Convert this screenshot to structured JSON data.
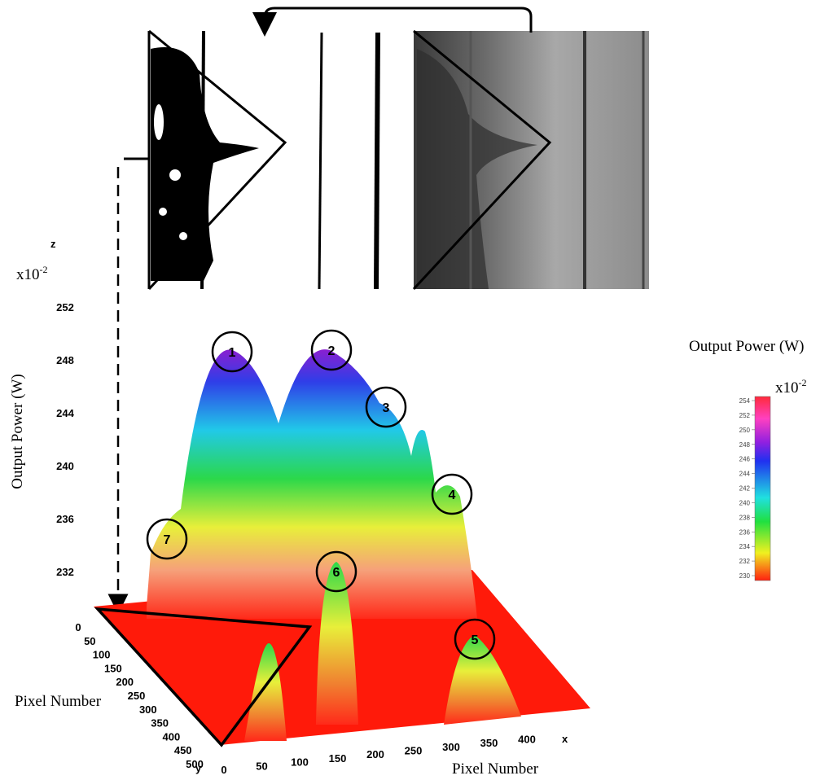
{
  "z_axis": {
    "label": "z",
    "multiplier": "x10",
    "exponent": "-2",
    "title": "Output Power (W)",
    "ticks": [
      252,
      248,
      244,
      240,
      236,
      232
    ]
  },
  "x_axis": {
    "label": "x",
    "title": "Pixel Number",
    "ticks": [
      0,
      50,
      100,
      150,
      200,
      250,
      300,
      350,
      400
    ]
  },
  "y_axis": {
    "label": "y",
    "title": "Pixel Number",
    "ticks": [
      0,
      50,
      100,
      150,
      200,
      250,
      300,
      350,
      400,
      450,
      500
    ]
  },
  "peaks": [
    "1",
    "2",
    "3",
    "4",
    "5",
    "6",
    "7"
  ],
  "colorbar": {
    "title": "Output Power (W)",
    "multiplier": "x10",
    "exponent": "-2",
    "ticks": [
      254,
      252,
      250,
      248,
      246,
      244,
      242,
      240,
      238,
      236,
      234,
      232,
      230
    ]
  }
}
